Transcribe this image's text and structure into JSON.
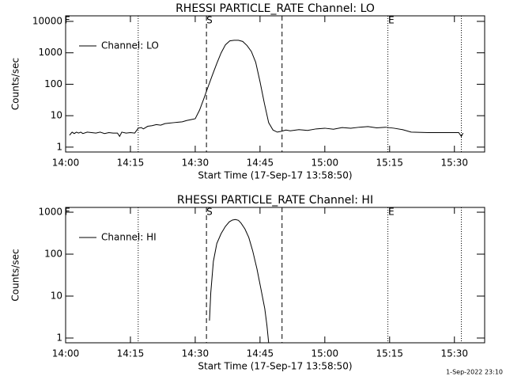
{
  "chart_data": [
    {
      "type": "line",
      "title": "RHESSI PARTICLE_RATE Channel: LO",
      "xlabel": "Start Time (17-Sep-17 13:58:50)",
      "ylabel": "Counts/sec",
      "log_y": true,
      "legend": "upper-left",
      "xlim": [
        0,
        97
      ],
      "xticks": [
        {
          "value": 0,
          "label": "14:00"
        },
        {
          "value": 15,
          "label": "14:15"
        },
        {
          "value": 30,
          "label": "14:30"
        },
        {
          "value": 45,
          "label": "14:45"
        },
        {
          "value": 60,
          "label": "15:00"
        },
        {
          "value": 75,
          "label": "15:15"
        },
        {
          "value": 90,
          "label": "15:30"
        }
      ],
      "ylim": [
        0.7,
        15000
      ],
      "yticks": [
        1,
        10,
        100,
        1000,
        10000
      ],
      "markers": [
        {
          "x": 16.8,
          "style": "dotted"
        },
        {
          "x": 32.6,
          "style": "dashed"
        },
        {
          "x": 50.1,
          "style": "dashed"
        },
        {
          "x": 74.6,
          "style": "dotted"
        },
        {
          "x": 91.6,
          "style": "dotted"
        }
      ],
      "annotations": [
        {
          "text": "F",
          "x": 0.4
        },
        {
          "text": "S",
          "x": 33.3
        },
        {
          "text": "E",
          "x": 75.4
        }
      ],
      "series": [
        {
          "name": "Channel: LO",
          "color": "#000000",
          "x": [
            0.9,
            1.5,
            2,
            2.5,
            3,
            3.5,
            4,
            5,
            6,
            7,
            8,
            9,
            10,
            11,
            12,
            12.5,
            13,
            14,
            15,
            16,
            16.8,
            17.5,
            18,
            19,
            20,
            21,
            22,
            23,
            24,
            25,
            26,
            27,
            28,
            29,
            30,
            31,
            32,
            32.6,
            34,
            35,
            36,
            37,
            38,
            39,
            40,
            41,
            42,
            43,
            44,
            45,
            46,
            47,
            48,
            49,
            50,
            51,
            52,
            54,
            56,
            58,
            60,
            62,
            64,
            66,
            68,
            70,
            72,
            74,
            76,
            78,
            80,
            84,
            88,
            91,
            91.6,
            92
          ],
          "values": [
            2.4,
            3,
            2.7,
            3,
            2.8,
            3,
            2.7,
            3,
            2.9,
            2.8,
            3,
            2.7,
            2.9,
            2.8,
            2.8,
            2.2,
            3,
            2.8,
            2.9,
            2.8,
            4,
            4.2,
            3.8,
            4.6,
            4.8,
            5.2,
            5,
            5.6,
            5.8,
            6,
            6.2,
            6.4,
            7,
            7.5,
            8,
            15,
            35,
            60,
            200,
            460,
            1000,
            1800,
            2400,
            2500,
            2500,
            2300,
            1700,
            1100,
            500,
            120,
            25,
            6,
            3.5,
            3,
            3.2,
            3.5,
            3.3,
            3.6,
            3.4,
            3.8,
            4,
            3.7,
            4.2,
            4,
            4.3,
            4.5,
            4.1,
            4.3,
            4,
            3.6,
            3,
            2.9,
            2.9,
            2.9,
            2.2,
            2.8
          ]
        }
      ]
    },
    {
      "type": "line",
      "title": "RHESSI PARTICLE_RATE Channel: HI",
      "xlabel": "Start Time (17-Sep-17 13:58:50)",
      "ylabel": "Counts/sec",
      "log_y": true,
      "legend": "upper-left",
      "xlim": [
        0,
        97
      ],
      "xticks": [
        {
          "value": 0,
          "label": "14:00"
        },
        {
          "value": 15,
          "label": "14:15"
        },
        {
          "value": 30,
          "label": "14:30"
        },
        {
          "value": 45,
          "label": "14:45"
        },
        {
          "value": 60,
          "label": "15:00"
        },
        {
          "value": 75,
          "label": "15:15"
        },
        {
          "value": 90,
          "label": "15:30"
        }
      ],
      "ylim": [
        0.77,
        1300
      ],
      "yticks": [
        1,
        10,
        100,
        1000
      ],
      "markers": [
        {
          "x": 16.8,
          "style": "dotted"
        },
        {
          "x": 32.6,
          "style": "dashed"
        },
        {
          "x": 50.1,
          "style": "dashed"
        },
        {
          "x": 74.6,
          "style": "dotted"
        },
        {
          "x": 91.6,
          "style": "dotted"
        }
      ],
      "annotations": [
        {
          "text": "F",
          "x": 0.4
        },
        {
          "text": "S",
          "x": 33.3
        },
        {
          "text": "E",
          "x": 75.4
        }
      ],
      "series": [
        {
          "name": "Channel: HI",
          "color": "#000000",
          "x": [
            33.3,
            33.6,
            34.2,
            35,
            36,
            37,
            37.9,
            38.6,
            39.3,
            40,
            40.6,
            41.5,
            42.4,
            43.3,
            44.3,
            45.2,
            46.1,
            46.6,
            47
          ],
          "values": [
            2.6,
            12,
            67,
            180,
            310,
            460,
            590,
            650,
            670,
            640,
            550,
            400,
            250,
            120,
            44,
            15,
            5,
            2,
            0.77
          ]
        }
      ]
    }
  ],
  "footer": "1-Sep-2022 23:10"
}
